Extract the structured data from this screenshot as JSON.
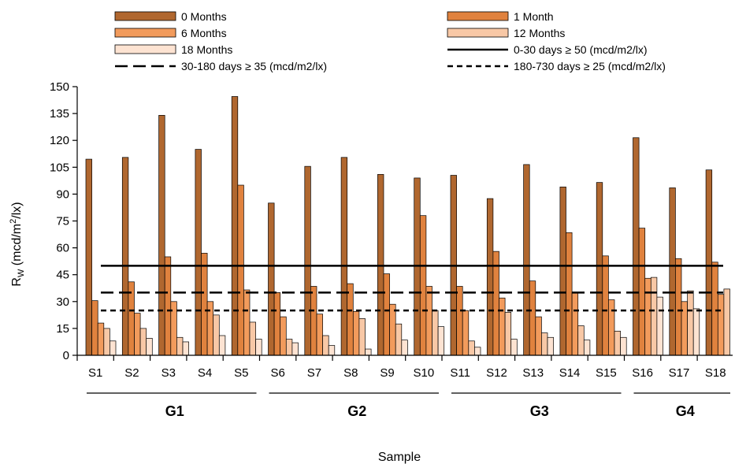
{
  "chart_data": {
    "type": "bar",
    "title": "",
    "xlabel": "Sample",
    "ylabel": {
      "main": "R",
      "sub": "W",
      "unit": " (mcd/m",
      "sup": "2",
      "unit_end": "/lx)"
    },
    "ylim": [
      0,
      150
    ],
    "yticks": [
      0,
      15,
      30,
      45,
      60,
      75,
      90,
      105,
      120,
      135,
      150
    ],
    "grid": false,
    "legend_position": "top",
    "categories": [
      "S1",
      "S2",
      "S3",
      "S4",
      "S5",
      "S6",
      "S7",
      "S8",
      "S9",
      "S10",
      "S11",
      "S12",
      "S13",
      "S14",
      "S15",
      "S16",
      "S17",
      "S18"
    ],
    "groups": [
      {
        "label": "G1",
        "from": "S1",
        "to": "S5"
      },
      {
        "label": "G2",
        "from": "S6",
        "to": "S10"
      },
      {
        "label": "G3",
        "from": "S11",
        "to": "S15"
      },
      {
        "label": "G4",
        "from": "S16",
        "to": "S18"
      }
    ],
    "series": [
      {
        "name": "0 Months",
        "color": "#b0672f",
        "values": [
          109.5,
          110.5,
          134,
          115,
          144.5,
          85,
          105.5,
          110.5,
          101,
          99,
          100.5,
          87.5,
          106.5,
          94,
          96.5,
          121.5,
          93.5,
          103.5
        ]
      },
      {
        "name": "1 Month",
        "color": "#e0823e",
        "values": [
          30.5,
          41,
          55,
          57,
          95,
          35,
          38.5,
          40,
          45.5,
          78,
          38.5,
          58,
          41.5,
          68.5,
          55.5,
          71,
          54,
          52
        ]
      },
      {
        "name": "6 Months",
        "color": "#f29b5c",
        "values": [
          18,
          23.5,
          30,
          30,
          36.5,
          21.5,
          23,
          24.5,
          28.5,
          38.5,
          25,
          32,
          21.5,
          35,
          31,
          43,
          30,
          34
        ]
      },
      {
        "name": "12 Months",
        "color": "#f8c8a6",
        "values": [
          15,
          15,
          10,
          22.5,
          18.5,
          9,
          11,
          20.5,
          17.5,
          25,
          8,
          24,
          12.5,
          16.5,
          13.5,
          43.5,
          36,
          37
        ]
      },
      {
        "name": "18 Months",
        "color": "#fde3d2",
        "values": [
          8,
          9.5,
          7.5,
          11,
          9,
          7,
          5.5,
          3.5,
          8.5,
          16,
          4.5,
          9,
          10,
          8.5,
          10,
          32.5,
          26,
          29.5
        ]
      }
    ],
    "reference_lines": [
      {
        "name": "0-30 days ≥ 50  (mcd/m2/lx)",
        "value": 50,
        "style": "solid"
      },
      {
        "name": "30-180 days ≥ 35 (mcd/m2/lx)",
        "value": 35,
        "style": "long-dash"
      },
      {
        "name": "180-730 days ≥ 25 (mcd/m2/lx)",
        "value": 25,
        "style": "short-dash"
      }
    ]
  }
}
